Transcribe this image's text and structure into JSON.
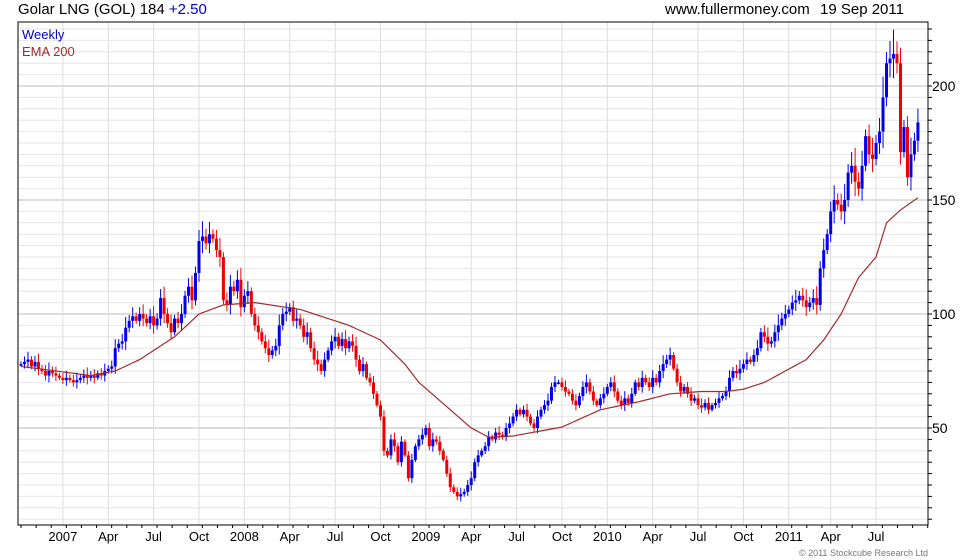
{
  "header": {
    "title": "Golar LNG (GOL) 184",
    "change": "+2.50",
    "site": "www.fullermoney.com",
    "date": "19 Sep 2011"
  },
  "copyright": "© 2011 Stockcube Research Ltd",
  "colors": {
    "up": "#0000ee",
    "down": "#ee0000",
    "ema": "#a52a2a",
    "legend_weekly": "#0000cc",
    "legend_ema": "#a52a2a"
  },
  "chart_data": {
    "type": "candlestick",
    "title": "Golar LNG (GOL)",
    "legend": [
      "Weekly",
      "EMA 200"
    ],
    "legend_placement": "top-left",
    "period": "weekly",
    "ylim": [
      7.5,
      228
    ],
    "y_ticks": [
      50,
      100,
      150,
      200
    ],
    "x_tick_labels": [
      "2007",
      "Apr",
      "Jul",
      "Oct",
      "2008",
      "Apr",
      "Jul",
      "Oct",
      "2009",
      "Apr",
      "Jul",
      "Oct",
      "2010",
      "Apr",
      "Jul",
      "Oct",
      "2011",
      "Apr",
      "Jul"
    ],
    "x_tick_week_index": [
      12,
      25,
      38,
      51,
      64,
      77,
      90,
      103,
      116,
      129,
      142,
      155,
      168,
      181,
      194,
      207,
      220,
      232,
      245
    ],
    "close": [
      78,
      79,
      80,
      77,
      79,
      76,
      75,
      73,
      75,
      74,
      73,
      72,
      71,
      72,
      71,
      70,
      71,
      72,
      73,
      72,
      73,
      72,
      74,
      73,
      75,
      76,
      77,
      85,
      87,
      88,
      94,
      97,
      99,
      97,
      100,
      98,
      96,
      99,
      95,
      98,
      107,
      100,
      96,
      92,
      98,
      96,
      100,
      108,
      112,
      106,
      118,
      132,
      134,
      131,
      135,
      133,
      128,
      125,
      106,
      104,
      112,
      110,
      115,
      103,
      108,
      110,
      100,
      95,
      92,
      88,
      85,
      82,
      84,
      86,
      95,
      100,
      101,
      103,
      97,
      98,
      95,
      90,
      92,
      85,
      80,
      78,
      75,
      80,
      84,
      88,
      90,
      86,
      89,
      85,
      88,
      86,
      80,
      75,
      78,
      72,
      70,
      65,
      60,
      55,
      40,
      38,
      45,
      42,
      35,
      44,
      38,
      28,
      36,
      42,
      45,
      47,
      50,
      42,
      45,
      44,
      40,
      36,
      30,
      24,
      22,
      20,
      21,
      22,
      25,
      28,
      35,
      38,
      40,
      42,
      46,
      45,
      48,
      47,
      46,
      50,
      52,
      55,
      58,
      56,
      58,
      55,
      52,
      50,
      55,
      58,
      60,
      62,
      68,
      70,
      70,
      68,
      66,
      65,
      62,
      60,
      64,
      68,
      70,
      66,
      62,
      60,
      63,
      65,
      68,
      70,
      66,
      62,
      60,
      63,
      61,
      65,
      70,
      68,
      72,
      70,
      68,
      72,
      70,
      75,
      78,
      80,
      82,
      76,
      70,
      66,
      68,
      65,
      62,
      63,
      60,
      59,
      61,
      58,
      60,
      61,
      63,
      64,
      66,
      72,
      75,
      74,
      76,
      78,
      80,
      79,
      82,
      85,
      92,
      90,
      87,
      88,
      92,
      95,
      98,
      100,
      102,
      105,
      106,
      108,
      106,
      103,
      105,
      107,
      104,
      120,
      128,
      135,
      145,
      150,
      148,
      145,
      150,
      162,
      165,
      158,
      155,
      165,
      178,
      170,
      168,
      175,
      180,
      195,
      210,
      212,
      214,
      210,
      171,
      182,
      160,
      170,
      176,
      184
    ],
    "ema_200": [
      [
        0,
        77
      ],
      [
        20,
        73
      ],
      [
        27,
        75
      ],
      [
        34,
        80
      ],
      [
        44,
        90
      ],
      [
        51,
        100
      ],
      [
        58,
        104
      ],
      [
        67,
        105
      ],
      [
        80,
        102
      ],
      [
        94,
        95
      ],
      [
        103,
        88.6
      ],
      [
        110,
        78
      ],
      [
        114,
        70
      ],
      [
        120,
        62
      ],
      [
        129,
        50
      ],
      [
        134,
        46
      ],
      [
        141,
        46.5
      ],
      [
        155,
        50.4
      ],
      [
        166,
        58
      ],
      [
        177,
        61.5
      ],
      [
        186,
        65
      ],
      [
        195,
        66
      ],
      [
        202,
        66
      ],
      [
        207,
        67
      ],
      [
        213,
        70
      ],
      [
        219,
        75
      ],
      [
        225,
        80
      ],
      [
        230,
        88.6
      ],
      [
        235,
        100
      ],
      [
        240,
        116
      ],
      [
        245,
        125
      ],
      [
        248,
        140
      ],
      [
        252,
        145.6
      ],
      [
        257,
        151
      ]
    ],
    "last_close": 184,
    "last_change": 2.5
  }
}
